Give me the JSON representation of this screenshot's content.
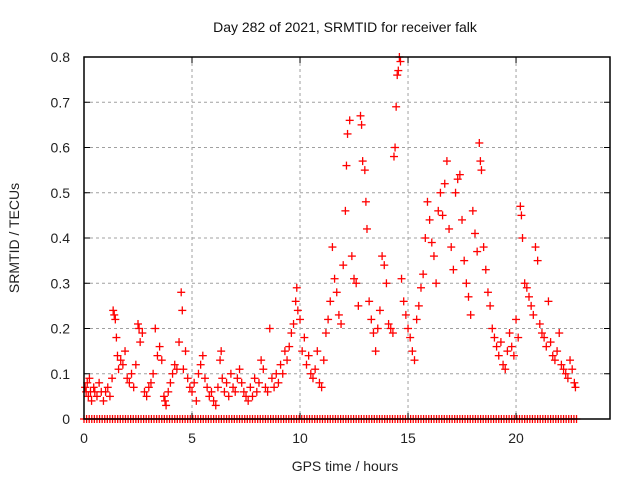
{
  "chart_data": {
    "type": "scatter",
    "title": "Day 282 of 2021, SRMTID for receiver falk",
    "xlabel": "GPS time / hours",
    "ylabel": "SRMTID / TECUs",
    "xlim": [
      0,
      24.35
    ],
    "ylim": [
      0,
      0.8
    ],
    "xticks": [
      0,
      5,
      10,
      15,
      20
    ],
    "xtick_labels": [
      "0",
      "5",
      "10",
      "15",
      "20"
    ],
    "yticks": [
      0,
      0.1,
      0.2,
      0.3,
      0.4,
      0.5,
      0.6,
      0.7,
      0.8
    ],
    "ytick_labels": [
      "0",
      "0.1",
      "0.2",
      "0.3",
      "0.4",
      "0.5",
      "0.6",
      "0.7",
      "0.8"
    ],
    "grid": true,
    "legend": "none",
    "marker": "plus",
    "color": "#ff0000",
    "zero_line": {
      "x_start": 0,
      "x_end": 22.8,
      "value": 0
    },
    "series": [
      {
        "name": "SRMTID",
        "points": [
          [
            0.05,
            0.07
          ],
          [
            0.1,
            0.06
          ],
          [
            0.15,
            0.08
          ],
          [
            0.2,
            0.05
          ],
          [
            0.25,
            0.09
          ],
          [
            0.3,
            0.06
          ],
          [
            0.35,
            0.04
          ],
          [
            0.45,
            0.07
          ],
          [
            0.5,
            0.06
          ],
          [
            0.6,
            0.05
          ],
          [
            0.7,
            0.08
          ],
          [
            0.8,
            0.06
          ],
          [
            0.9,
            0.04
          ],
          [
            1.0,
            0.06
          ],
          [
            1.1,
            0.07
          ],
          [
            1.2,
            0.05
          ],
          [
            1.3,
            0.09
          ],
          [
            1.35,
            0.24
          ],
          [
            1.4,
            0.23
          ],
          [
            1.45,
            0.22
          ],
          [
            1.5,
            0.18
          ],
          [
            1.55,
            0.14
          ],
          [
            1.6,
            0.11
          ],
          [
            1.7,
            0.13
          ],
          [
            1.8,
            0.12
          ],
          [
            1.9,
            0.15
          ],
          [
            2.0,
            0.09
          ],
          [
            2.1,
            0.08
          ],
          [
            2.2,
            0.1
          ],
          [
            2.3,
            0.07
          ],
          [
            2.4,
            0.12
          ],
          [
            2.5,
            0.21
          ],
          [
            2.55,
            0.2
          ],
          [
            2.6,
            0.17
          ],
          [
            2.7,
            0.19
          ],
          [
            2.8,
            0.06
          ],
          [
            2.9,
            0.05
          ],
          [
            3.0,
            0.07
          ],
          [
            3.1,
            0.08
          ],
          [
            3.2,
            0.1
          ],
          [
            3.3,
            0.2
          ],
          [
            3.4,
            0.14
          ],
          [
            3.5,
            0.16
          ],
          [
            3.6,
            0.13
          ],
          [
            3.7,
            0.05
          ],
          [
            3.75,
            0.04
          ],
          [
            3.8,
            0.03
          ],
          [
            3.9,
            0.06
          ],
          [
            4.0,
            0.08
          ],
          [
            4.1,
            0.1
          ],
          [
            4.2,
            0.12
          ],
          [
            4.3,
            0.11
          ],
          [
            4.4,
            0.17
          ],
          [
            4.5,
            0.28
          ],
          [
            4.55,
            0.24
          ],
          [
            4.6,
            0.11
          ],
          [
            4.7,
            0.15
          ],
          [
            4.8,
            0.09
          ],
          [
            4.9,
            0.07
          ],
          [
            5.0,
            0.06
          ],
          [
            5.1,
            0.08
          ],
          [
            5.2,
            0.04
          ],
          [
            5.3,
            0.1
          ],
          [
            5.4,
            0.12
          ],
          [
            5.5,
            0.14
          ],
          [
            5.6,
            0.09
          ],
          [
            5.7,
            0.07
          ],
          [
            5.8,
            0.05
          ],
          [
            5.9,
            0.06
          ],
          [
            6.0,
            0.04
          ],
          [
            6.1,
            0.03
          ],
          [
            6.2,
            0.07
          ],
          [
            6.3,
            0.13
          ],
          [
            6.35,
            0.15
          ],
          [
            6.4,
            0.09
          ],
          [
            6.5,
            0.06
          ],
          [
            6.6,
            0.08
          ],
          [
            6.7,
            0.05
          ],
          [
            6.8,
            0.1
          ],
          [
            6.9,
            0.07
          ],
          [
            7.0,
            0.06
          ],
          [
            7.1,
            0.09
          ],
          [
            7.2,
            0.11
          ],
          [
            7.3,
            0.08
          ],
          [
            7.4,
            0.06
          ],
          [
            7.5,
            0.05
          ],
          [
            7.6,
            0.04
          ],
          [
            7.7,
            0.07
          ],
          [
            7.8,
            0.05
          ],
          [
            7.9,
            0.09
          ],
          [
            8.0,
            0.06
          ],
          [
            8.1,
            0.08
          ],
          [
            8.2,
            0.13
          ],
          [
            8.3,
            0.11
          ],
          [
            8.4,
            0.07
          ],
          [
            8.5,
            0.06
          ],
          [
            8.6,
            0.2
          ],
          [
            8.7,
            0.09
          ],
          [
            8.8,
            0.07
          ],
          [
            8.9,
            0.1
          ],
          [
            9.0,
            0.08
          ],
          [
            9.1,
            0.12
          ],
          [
            9.2,
            0.1
          ],
          [
            9.3,
            0.15
          ],
          [
            9.4,
            0.13
          ],
          [
            9.5,
            0.16
          ],
          [
            9.6,
            0.19
          ],
          [
            9.7,
            0.21
          ],
          [
            9.8,
            0.26
          ],
          [
            9.85,
            0.29
          ],
          [
            9.9,
            0.24
          ],
          [
            10.0,
            0.22
          ],
          [
            10.1,
            0.15
          ],
          [
            10.2,
            0.18
          ],
          [
            10.3,
            0.12
          ],
          [
            10.4,
            0.14
          ],
          [
            10.5,
            0.1
          ],
          [
            10.6,
            0.09
          ],
          [
            10.7,
            0.11
          ],
          [
            10.8,
            0.15
          ],
          [
            10.9,
            0.08
          ],
          [
            11.0,
            0.07
          ],
          [
            11.1,
            0.13
          ],
          [
            11.2,
            0.19
          ],
          [
            11.3,
            0.22
          ],
          [
            11.4,
            0.26
          ],
          [
            11.5,
            0.38
          ],
          [
            11.6,
            0.31
          ],
          [
            11.7,
            0.28
          ],
          [
            11.8,
            0.23
          ],
          [
            11.9,
            0.21
          ],
          [
            12.0,
            0.34
          ],
          [
            12.1,
            0.46
          ],
          [
            12.15,
            0.56
          ],
          [
            12.2,
            0.63
          ],
          [
            12.3,
            0.66
          ],
          [
            12.4,
            0.36
          ],
          [
            12.5,
            0.31
          ],
          [
            12.6,
            0.3
          ],
          [
            12.7,
            0.25
          ],
          [
            12.8,
            0.67
          ],
          [
            12.85,
            0.65
          ],
          [
            12.9,
            0.57
          ],
          [
            13.0,
            0.55
          ],
          [
            13.05,
            0.48
          ],
          [
            13.1,
            0.42
          ],
          [
            13.2,
            0.26
          ],
          [
            13.3,
            0.22
          ],
          [
            13.4,
            0.19
          ],
          [
            13.5,
            0.15
          ],
          [
            13.6,
            0.2
          ],
          [
            13.7,
            0.24
          ],
          [
            13.8,
            0.36
          ],
          [
            13.9,
            0.34
          ],
          [
            14.0,
            0.3
          ],
          [
            14.1,
            0.21
          ],
          [
            14.2,
            0.2
          ],
          [
            14.3,
            0.19
          ],
          [
            14.35,
            0.58
          ],
          [
            14.4,
            0.6
          ],
          [
            14.45,
            0.69
          ],
          [
            14.5,
            0.76
          ],
          [
            14.55,
            0.77
          ],
          [
            14.6,
            0.8
          ],
          [
            14.65,
            0.79
          ],
          [
            14.7,
            0.31
          ],
          [
            14.8,
            0.26
          ],
          [
            14.9,
            0.23
          ],
          [
            15.0,
            0.2
          ],
          [
            15.1,
            0.18
          ],
          [
            15.2,
            0.15
          ],
          [
            15.3,
            0.13
          ],
          [
            15.4,
            0.22
          ],
          [
            15.5,
            0.25
          ],
          [
            15.6,
            0.29
          ],
          [
            15.7,
            0.32
          ],
          [
            15.8,
            0.4
          ],
          [
            15.9,
            0.48
          ],
          [
            16.0,
            0.44
          ],
          [
            16.1,
            0.39
          ],
          [
            16.2,
            0.36
          ],
          [
            16.3,
            0.3
          ],
          [
            16.4,
            0.46
          ],
          [
            16.5,
            0.5
          ],
          [
            16.6,
            0.45
          ],
          [
            16.7,
            0.52
          ],
          [
            16.8,
            0.57
          ],
          [
            16.9,
            0.42
          ],
          [
            17.0,
            0.38
          ],
          [
            17.1,
            0.33
          ],
          [
            17.2,
            0.5
          ],
          [
            17.3,
            0.53
          ],
          [
            17.4,
            0.54
          ],
          [
            17.5,
            0.44
          ],
          [
            17.6,
            0.35
          ],
          [
            17.7,
            0.3
          ],
          [
            17.8,
            0.27
          ],
          [
            17.9,
            0.23
          ],
          [
            18.0,
            0.46
          ],
          [
            18.1,
            0.41
          ],
          [
            18.2,
            0.37
          ],
          [
            18.3,
            0.61
          ],
          [
            18.35,
            0.57
          ],
          [
            18.4,
            0.55
          ],
          [
            18.5,
            0.38
          ],
          [
            18.6,
            0.33
          ],
          [
            18.7,
            0.28
          ],
          [
            18.8,
            0.25
          ],
          [
            18.9,
            0.2
          ],
          [
            19.0,
            0.18
          ],
          [
            19.1,
            0.16
          ],
          [
            19.2,
            0.14
          ],
          [
            19.3,
            0.17
          ],
          [
            19.4,
            0.12
          ],
          [
            19.5,
            0.11
          ],
          [
            19.6,
            0.15
          ],
          [
            19.7,
            0.19
          ],
          [
            19.8,
            0.16
          ],
          [
            19.9,
            0.14
          ],
          [
            20.0,
            0.22
          ],
          [
            20.1,
            0.18
          ],
          [
            20.2,
            0.47
          ],
          [
            20.25,
            0.45
          ],
          [
            20.3,
            0.4
          ],
          [
            20.4,
            0.3
          ],
          [
            20.5,
            0.29
          ],
          [
            20.6,
            0.27
          ],
          [
            20.7,
            0.25
          ],
          [
            20.8,
            0.23
          ],
          [
            20.9,
            0.38
          ],
          [
            21.0,
            0.35
          ],
          [
            21.1,
            0.21
          ],
          [
            21.2,
            0.19
          ],
          [
            21.3,
            0.18
          ],
          [
            21.4,
            0.16
          ],
          [
            21.5,
            0.26
          ],
          [
            21.6,
            0.17
          ],
          [
            21.7,
            0.14
          ],
          [
            21.8,
            0.13
          ],
          [
            21.9,
            0.15
          ],
          [
            22.0,
            0.19
          ],
          [
            22.1,
            0.12
          ],
          [
            22.2,
            0.11
          ],
          [
            22.3,
            0.1
          ],
          [
            22.4,
            0.09
          ],
          [
            22.5,
            0.13
          ],
          [
            22.6,
            0.11
          ],
          [
            22.7,
            0.08
          ],
          [
            22.75,
            0.07
          ]
        ]
      }
    ]
  }
}
